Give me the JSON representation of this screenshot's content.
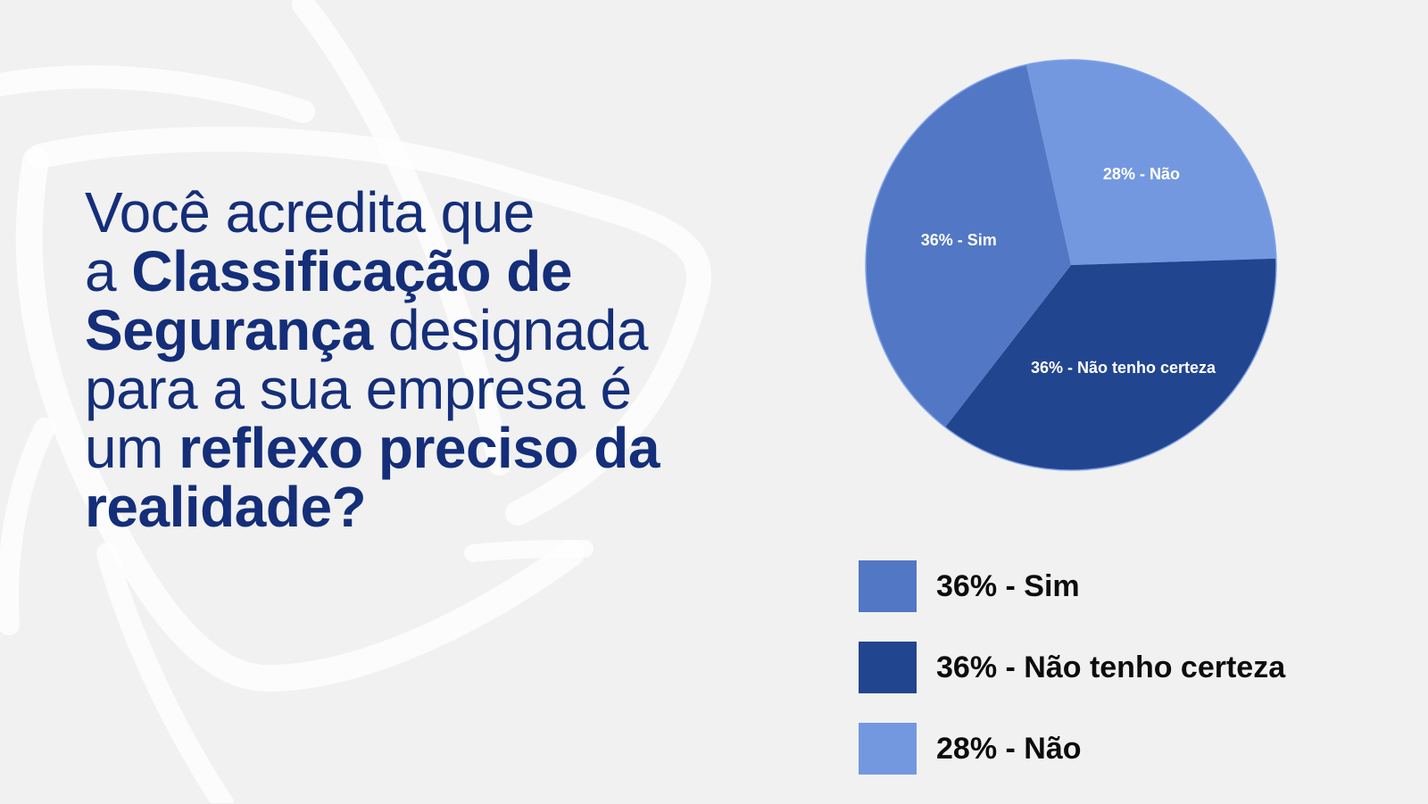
{
  "headline": {
    "line1": "Você acredita que",
    "line2_a": "a ",
    "line2_b": "Classificação de",
    "line3_a": "Segurança",
    "line3_b": " designada",
    "line4": "para a sua empresa é",
    "line5_a": "um ",
    "line5_b": "reflexo preciso da",
    "line6": "realidade?"
  },
  "colors": {
    "background": "#f1f1f1",
    "headline": "#142e79",
    "sim": "#5277c4",
    "nao_tenho_certeza": "#22458f",
    "nao": "#7398e0"
  },
  "chart_data": {
    "type": "pie",
    "slices": [
      {
        "label": "36% - Sim",
        "value": 36,
        "color": "#5277c4"
      },
      {
        "label": "36% - Não tenho certeza",
        "value": 36,
        "color": "#22458f"
      },
      {
        "label": "28% - Não",
        "value": 28,
        "color": "#7398e0"
      }
    ],
    "legend": [
      "36% - Sim",
      "36% - Não tenho certeza",
      "28% - Não"
    ],
    "legend_position": "bottom"
  }
}
